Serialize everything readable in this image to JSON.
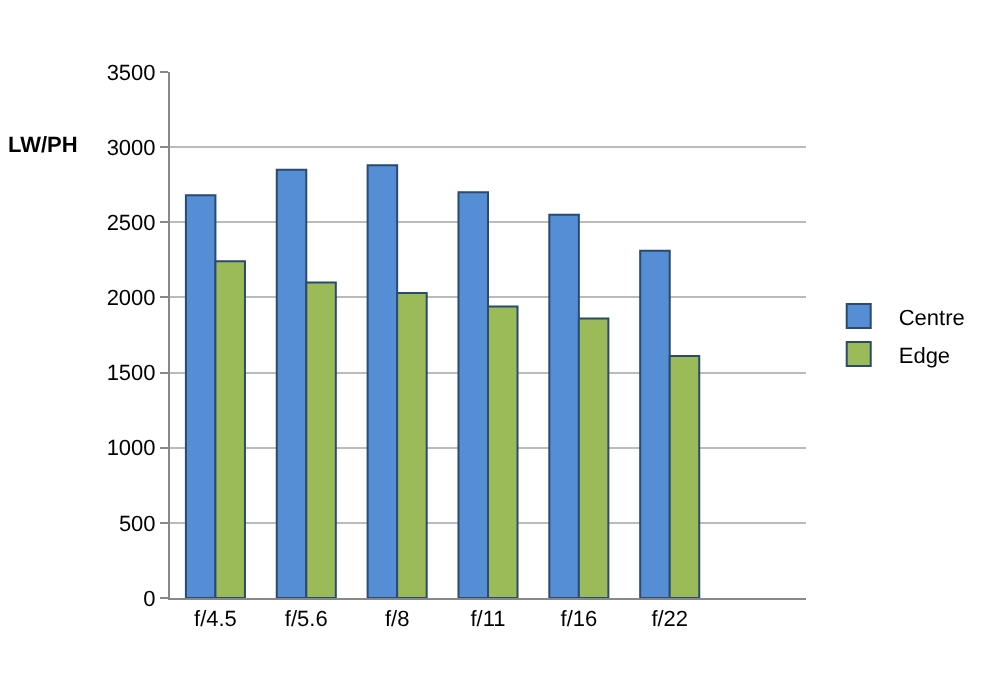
{
  "chart_data": {
    "type": "bar",
    "ylabel": "LW/PH",
    "categories": [
      "f/4.5",
      "f/5.6",
      "f/8",
      "f/11",
      "f/16",
      "f/22"
    ],
    "series": [
      {
        "name": "Centre",
        "color": "#558ed5",
        "values": [
          2680,
          2850,
          2880,
          2700,
          2550,
          2310
        ]
      },
      {
        "name": "Edge",
        "color": "#9bbb59",
        "values": [
          2240,
          2100,
          2030,
          1940,
          1860,
          1610
        ]
      }
    ],
    "ylim": [
      0,
      3500
    ],
    "yticks": [
      0,
      500,
      1000,
      1500,
      2000,
      2500,
      3000,
      3500
    ],
    "grid": "y",
    "legend": "right"
  }
}
